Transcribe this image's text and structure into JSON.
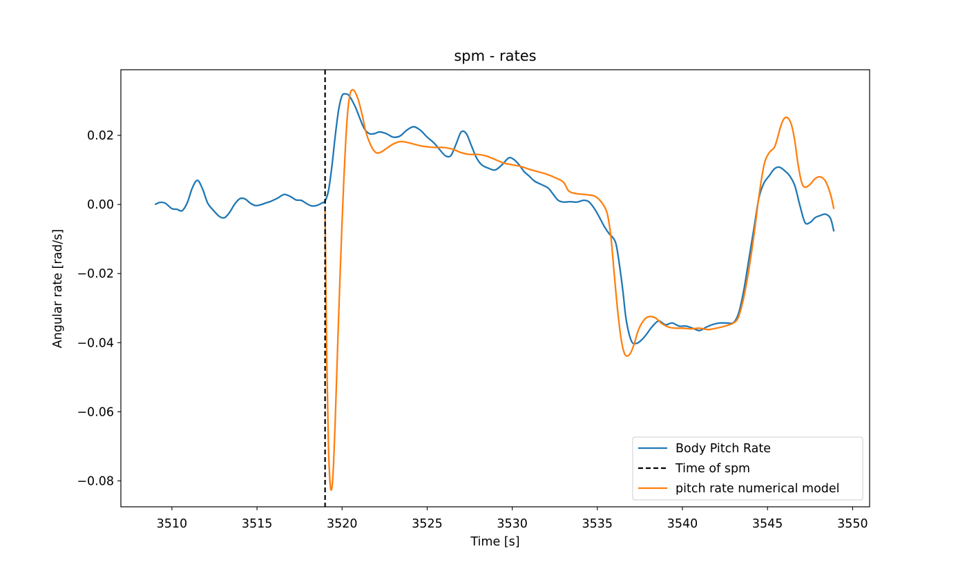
{
  "chart_data": {
    "type": "line",
    "title": "spm - rates",
    "xlabel": "Time [s]",
    "ylabel": "Angular rate [rad/s]",
    "xlim": [
      3507,
      3551
    ],
    "ylim": [
      -0.0875,
      0.039
    ],
    "xticks": [
      3510,
      3515,
      3520,
      3525,
      3530,
      3535,
      3540,
      3545,
      3550
    ],
    "xtick_labels": [
      "3510",
      "3515",
      "3520",
      "3525",
      "3530",
      "3535",
      "3540",
      "3545",
      "3550"
    ],
    "yticks": [
      0.02,
      0.0,
      -0.02,
      -0.04,
      -0.06,
      -0.08
    ],
    "ytick_labels": [
      "0.02",
      "0.00",
      "−0.02",
      "−0.04",
      "−0.06",
      "−0.08"
    ],
    "grid": false,
    "legend_position": "lower-right",
    "series": [
      {
        "name": "Body Pitch Rate",
        "color": "#1f77b4",
        "style": "solid",
        "x": [
          3509.0,
          3509.3,
          3509.6,
          3510.0,
          3510.3,
          3510.6,
          3510.9,
          3511.2,
          3511.5,
          3511.8,
          3512.1,
          3512.4,
          3512.8,
          3513.1,
          3513.4,
          3513.7,
          3514.0,
          3514.3,
          3514.6,
          3514.9,
          3515.2,
          3515.5,
          3515.8,
          3516.2,
          3516.6,
          3517.0,
          3517.3,
          3517.6,
          3517.9,
          3518.2,
          3518.5,
          3518.8,
          3519.0,
          3519.2,
          3519.4,
          3519.6,
          3519.8,
          3520.0,
          3520.2,
          3520.4,
          3520.6,
          3520.8,
          3521.0,
          3521.3,
          3521.6,
          3521.9,
          3522.2,
          3522.6,
          3523.0,
          3523.4,
          3523.8,
          3524.2,
          3524.6,
          3525.0,
          3525.4,
          3525.8,
          3526.1,
          3526.4,
          3526.7,
          3527.0,
          3527.3,
          3527.6,
          3527.9,
          3528.2,
          3528.6,
          3529.0,
          3529.4,
          3529.8,
          3530.1,
          3530.4,
          3530.7,
          3531.0,
          3531.3,
          3531.7,
          3532.1,
          3532.4,
          3532.7,
          3533.0,
          3533.4,
          3533.8,
          3534.2,
          3534.5,
          3534.8,
          3535.1,
          3535.4,
          3535.7,
          3535.9,
          3536.1,
          3536.3,
          3536.5,
          3536.7,
          3537.0,
          3537.3,
          3537.6,
          3537.9,
          3538.2,
          3538.6,
          3539.0,
          3539.4,
          3539.8,
          3540.2,
          3540.6,
          3541.0,
          3541.4,
          3541.8,
          3542.2,
          3542.6,
          3543.0,
          3543.3,
          3543.6,
          3543.9,
          3544.2,
          3544.5,
          3544.8,
          3545.1,
          3545.4,
          3545.7,
          3546.0,
          3546.3,
          3546.6,
          3546.9,
          3547.2,
          3547.5,
          3547.8,
          3548.1,
          3548.4,
          3548.7,
          3548.9
        ],
        "y": [
          0.0,
          0.0006,
          0.0004,
          -0.0012,
          -0.0014,
          -0.0018,
          0.0005,
          0.0048,
          0.007,
          0.0045,
          0.0004,
          -0.0015,
          -0.0035,
          -0.0038,
          -0.0022,
          0.0002,
          0.0017,
          0.0016,
          0.0004,
          -0.0003,
          -0.0001,
          0.0004,
          0.0009,
          0.0018,
          0.0029,
          0.0022,
          0.0013,
          0.0012,
          0.0003,
          -0.0004,
          -0.0003,
          0.0004,
          0.001,
          0.004,
          0.011,
          0.02,
          0.0275,
          0.0315,
          0.032,
          0.0316,
          0.03,
          0.028,
          0.0255,
          0.022,
          0.0205,
          0.0205,
          0.021,
          0.0205,
          0.0195,
          0.0198,
          0.0215,
          0.0225,
          0.0215,
          0.0195,
          0.0178,
          0.0155,
          0.014,
          0.0142,
          0.0175,
          0.021,
          0.0205,
          0.017,
          0.0135,
          0.0115,
          0.0105,
          0.01,
          0.0115,
          0.0135,
          0.013,
          0.0115,
          0.0095,
          0.0082,
          0.0068,
          0.0058,
          0.0048,
          0.003,
          0.0012,
          0.0007,
          0.0008,
          0.0007,
          0.0012,
          0.0008,
          -0.001,
          -0.0035,
          -0.0063,
          -0.0085,
          -0.0095,
          -0.0115,
          -0.0175,
          -0.025,
          -0.0335,
          -0.0395,
          -0.0402,
          -0.0392,
          -0.0375,
          -0.0355,
          -0.0337,
          -0.0348,
          -0.0343,
          -0.0352,
          -0.0352,
          -0.0358,
          -0.0365,
          -0.0355,
          -0.0347,
          -0.0343,
          -0.0343,
          -0.0342,
          -0.0315,
          -0.025,
          -0.016,
          -0.007,
          0.002,
          0.0063,
          0.0083,
          0.0103,
          0.0108,
          0.0098,
          0.0083,
          0.0055,
          -0.0002,
          -0.0052,
          -0.0052,
          -0.0038,
          -0.0032,
          -0.0028,
          -0.004,
          -0.0078
        ]
      },
      {
        "name": "Time of spm",
        "color": "#000000",
        "style": "dashed",
        "x": [
          3519.0,
          3519.0
        ],
        "y": [
          0.039,
          -0.0875
        ]
      },
      {
        "name": "pitch rate numerical model",
        "color": "#ff7f0e",
        "style": "solid",
        "x": [
          3519.0,
          3519.1,
          3519.2,
          3519.3,
          3519.4,
          3519.5,
          3519.6,
          3519.7,
          3519.8,
          3519.9,
          3520.0,
          3520.1,
          3520.2,
          3520.3,
          3520.4,
          3520.5,
          3520.6,
          3520.7,
          3520.8,
          3520.9,
          3521.0,
          3521.2,
          3521.4,
          3521.7,
          3522.0,
          3522.3,
          3522.6,
          3523.0,
          3523.4,
          3523.8,
          3524.2,
          3524.6,
          3525.0,
          3525.5,
          3526.0,
          3526.5,
          3527.0,
          3527.5,
          3528.0,
          3528.5,
          3529.0,
          3529.5,
          3530.0,
          3530.5,
          3531.0,
          3531.5,
          3532.0,
          3532.5,
          3533.0,
          3533.3,
          3533.6,
          3534.0,
          3534.4,
          3534.8,
          3535.1,
          3535.4,
          3535.6,
          3535.8,
          3536.0,
          3536.2,
          3536.4,
          3536.6,
          3536.8,
          3537.0,
          3537.2,
          3537.4,
          3537.7,
          3538.0,
          3538.4,
          3538.8,
          3539.2,
          3539.6,
          3540.0,
          3540.5,
          3541.0,
          3541.5,
          3542.0,
          3542.5,
          3543.0,
          3543.3,
          3543.6,
          3543.9,
          3544.2,
          3544.5,
          3544.8,
          3545.1,
          3545.4,
          3545.6,
          3545.8,
          3546.0,
          3546.2,
          3546.4,
          3546.6,
          3546.8,
          3547.0,
          3547.2,
          3547.5,
          3547.8,
          3548.1,
          3548.4,
          3548.7,
          3548.9
        ],
        "y": [
          -0.002,
          -0.045,
          -0.07,
          -0.081,
          -0.082,
          -0.075,
          -0.062,
          -0.047,
          -0.032,
          -0.018,
          -0.005,
          0.007,
          0.017,
          0.025,
          0.03,
          0.0325,
          0.0332,
          0.033,
          0.0322,
          0.031,
          0.0295,
          0.0255,
          0.021,
          0.017,
          0.015,
          0.0152,
          0.0162,
          0.0175,
          0.0182,
          0.018,
          0.0175,
          0.017,
          0.0167,
          0.0165,
          0.0165,
          0.016,
          0.015,
          0.0145,
          0.0145,
          0.014,
          0.013,
          0.012,
          0.0115,
          0.011,
          0.0102,
          0.0095,
          0.0088,
          0.0078,
          0.0065,
          0.004,
          0.0033,
          0.003,
          0.0028,
          0.0025,
          0.0015,
          -0.0005,
          -0.003,
          -0.0095,
          -0.0205,
          -0.031,
          -0.039,
          -0.0432,
          -0.0438,
          -0.0425,
          -0.0398,
          -0.0365,
          -0.0337,
          -0.0325,
          -0.0328,
          -0.0345,
          -0.0355,
          -0.0358,
          -0.0358,
          -0.036,
          -0.0358,
          -0.0362,
          -0.0358,
          -0.0352,
          -0.0343,
          -0.0325,
          -0.027,
          -0.019,
          -0.009,
          0.0025,
          0.0115,
          0.015,
          0.0165,
          0.0195,
          0.023,
          0.025,
          0.025,
          0.0232,
          0.0185,
          0.0115,
          0.0065,
          0.005,
          0.0058,
          0.0075,
          0.008,
          0.0068,
          0.003,
          -0.0013
        ]
      }
    ]
  }
}
